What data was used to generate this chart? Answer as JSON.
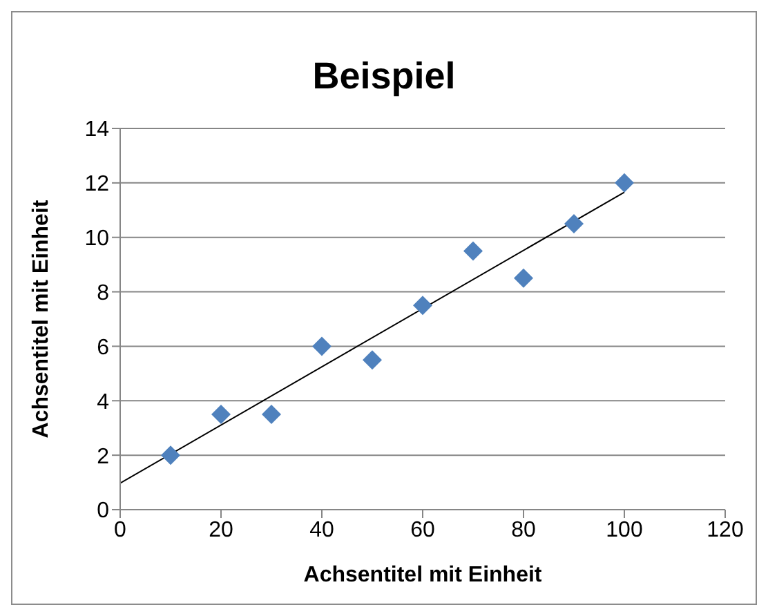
{
  "chart_data": {
    "type": "scatter",
    "title": "Beispiel",
    "xlabel": "Achsentitel mit Einheit",
    "ylabel": "Achsentitel mit Einheit",
    "x": [
      10,
      20,
      30,
      40,
      50,
      60,
      70,
      80,
      90,
      100
    ],
    "series": [
      {
        "color": "#4f81bd",
        "marker": "diamond",
        "values": [
          2,
          3.5,
          3.5,
          6,
          5.5,
          7.5,
          9.5,
          8.5,
          10.5,
          12
        ]
      },
      {
        "type": "line",
        "color": "#000000",
        "marker": "none",
        "x": [
          0,
          100
        ],
        "values": [
          0.97,
          11.66
        ]
      }
    ],
    "xlim": [
      0,
      120
    ],
    "xticks": [
      0,
      20,
      40,
      60,
      80,
      100,
      120
    ],
    "ylim": [
      0,
      14
    ],
    "yticks": [
      0,
      2,
      4,
      6,
      8,
      10,
      12,
      14
    ],
    "grid": "y",
    "legend": false
  }
}
